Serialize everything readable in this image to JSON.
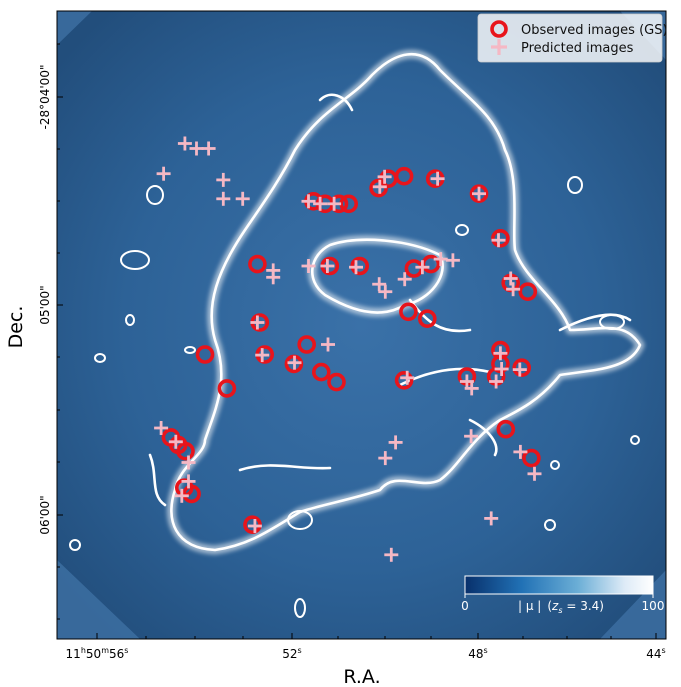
{
  "chart_data": {
    "type": "scatter",
    "xlabel": "R.A.",
    "ylabel": "Dec.",
    "x_ticks": [
      {
        "value": "11h50m56s",
        "main": "11",
        "sup1": "h",
        "mid": "50",
        "sup2": "m",
        "end": "56",
        "sup3": "s"
      },
      {
        "value": "52s",
        "main": "52",
        "sup3": "s"
      },
      {
        "value": "48s",
        "main": "48",
        "sup3": "s"
      },
      {
        "value": "44s",
        "main": "44",
        "sup3": "s"
      }
    ],
    "y_ticks": [
      "-28°04'00\"",
      "05'00\"",
      "06'00\""
    ],
    "legend": {
      "placement": "top-right",
      "entries": [
        "Observed images (GS)",
        "Predicted images"
      ]
    },
    "colorbar": {
      "min_label": "0",
      "max_label": "100",
      "label": "|μ| (z_s = 3.4)",
      "label_parts": {
        "abs": "| μ |",
        "open": "(",
        "z": "z",
        "s": "s",
        "eq": " = 3.4)"
      },
      "cmap": [
        "#08306b",
        "#2171b5",
        "#6baed6",
        "#deebf7",
        "#ffffff"
      ],
      "range": [
        0,
        100
      ]
    },
    "colors": {
      "background_map": "#2c5f94",
      "observed": "#e8141b",
      "predicted": "#f5b8c4",
      "critical_curve": "#ffffff"
    },
    "series": [
      {
        "name": "Observed images (GS)",
        "marker": "circle",
        "units": "plot-frame fraction (0=left/bottom, 1=right/top)",
        "points": [
          [
            0.421,
            0.697
          ],
          [
            0.44,
            0.693
          ],
          [
            0.463,
            0.693
          ],
          [
            0.479,
            0.693
          ],
          [
            0.528,
            0.718
          ],
          [
            0.544,
            0.733
          ],
          [
            0.57,
            0.737
          ],
          [
            0.621,
            0.733
          ],
          [
            0.693,
            0.709
          ],
          [
            0.728,
            0.638
          ],
          [
            0.329,
            0.597
          ],
          [
            0.448,
            0.594
          ],
          [
            0.497,
            0.594
          ],
          [
            0.586,
            0.59
          ],
          [
            0.614,
            0.597
          ],
          [
            0.745,
            0.567
          ],
          [
            0.773,
            0.553
          ],
          [
            0.577,
            0.521
          ],
          [
            0.608,
            0.51
          ],
          [
            0.333,
            0.504
          ],
          [
            0.243,
            0.453
          ],
          [
            0.341,
            0.453
          ],
          [
            0.41,
            0.469
          ],
          [
            0.389,
            0.438
          ],
          [
            0.434,
            0.425
          ],
          [
            0.459,
            0.409
          ],
          [
            0.57,
            0.412
          ],
          [
            0.728,
            0.46
          ],
          [
            0.728,
            0.438
          ],
          [
            0.763,
            0.432
          ],
          [
            0.673,
            0.418
          ],
          [
            0.721,
            0.418
          ],
          [
            0.279,
            0.399
          ],
          [
            0.737,
            0.334
          ],
          [
            0.187,
            0.321
          ],
          [
            0.199,
            0.309
          ],
          [
            0.211,
            0.299
          ],
          [
            0.209,
            0.241
          ],
          [
            0.221,
            0.231
          ],
          [
            0.321,
            0.182
          ],
          [
            0.779,
            0.288
          ]
        ]
      },
      {
        "name": "Predicted images",
        "marker": "plus",
        "units": "plot-frame fraction (0=left/bottom, 1=right/top)",
        "points": [
          [
            0.21,
            0.789
          ],
          [
            0.229,
            0.781
          ],
          [
            0.249,
            0.781
          ],
          [
            0.175,
            0.741
          ],
          [
            0.273,
            0.731
          ],
          [
            0.273,
            0.701
          ],
          [
            0.305,
            0.701
          ],
          [
            0.413,
            0.697
          ],
          [
            0.432,
            0.693
          ],
          [
            0.455,
            0.693
          ],
          [
            0.53,
            0.72
          ],
          [
            0.538,
            0.736
          ],
          [
            0.625,
            0.733
          ],
          [
            0.693,
            0.709
          ],
          [
            0.725,
            0.635
          ],
          [
            0.355,
            0.587
          ],
          [
            0.355,
            0.576
          ],
          [
            0.413,
            0.594
          ],
          [
            0.444,
            0.594
          ],
          [
            0.491,
            0.592
          ],
          [
            0.529,
            0.565
          ],
          [
            0.539,
            0.553
          ],
          [
            0.571,
            0.573
          ],
          [
            0.6,
            0.592
          ],
          [
            0.63,
            0.605
          ],
          [
            0.65,
            0.603
          ],
          [
            0.745,
            0.574
          ],
          [
            0.749,
            0.557
          ],
          [
            0.329,
            0.504
          ],
          [
            0.337,
            0.452
          ],
          [
            0.445,
            0.469
          ],
          [
            0.39,
            0.44
          ],
          [
            0.575,
            0.416
          ],
          [
            0.673,
            0.41
          ],
          [
            0.681,
            0.399
          ],
          [
            0.728,
            0.455
          ],
          [
            0.73,
            0.43
          ],
          [
            0.721,
            0.41
          ],
          [
            0.76,
            0.429
          ],
          [
            0.171,
            0.336
          ],
          [
            0.195,
            0.314
          ],
          [
            0.216,
            0.281
          ],
          [
            0.216,
            0.251
          ],
          [
            0.205,
            0.228
          ],
          [
            0.556,
            0.313
          ],
          [
            0.539,
            0.288
          ],
          [
            0.68,
            0.323
          ],
          [
            0.761,
            0.298
          ],
          [
            0.784,
            0.263
          ],
          [
            0.713,
            0.192
          ],
          [
            0.549,
            0.134
          ],
          [
            0.325,
            0.18
          ]
        ]
      }
    ]
  }
}
